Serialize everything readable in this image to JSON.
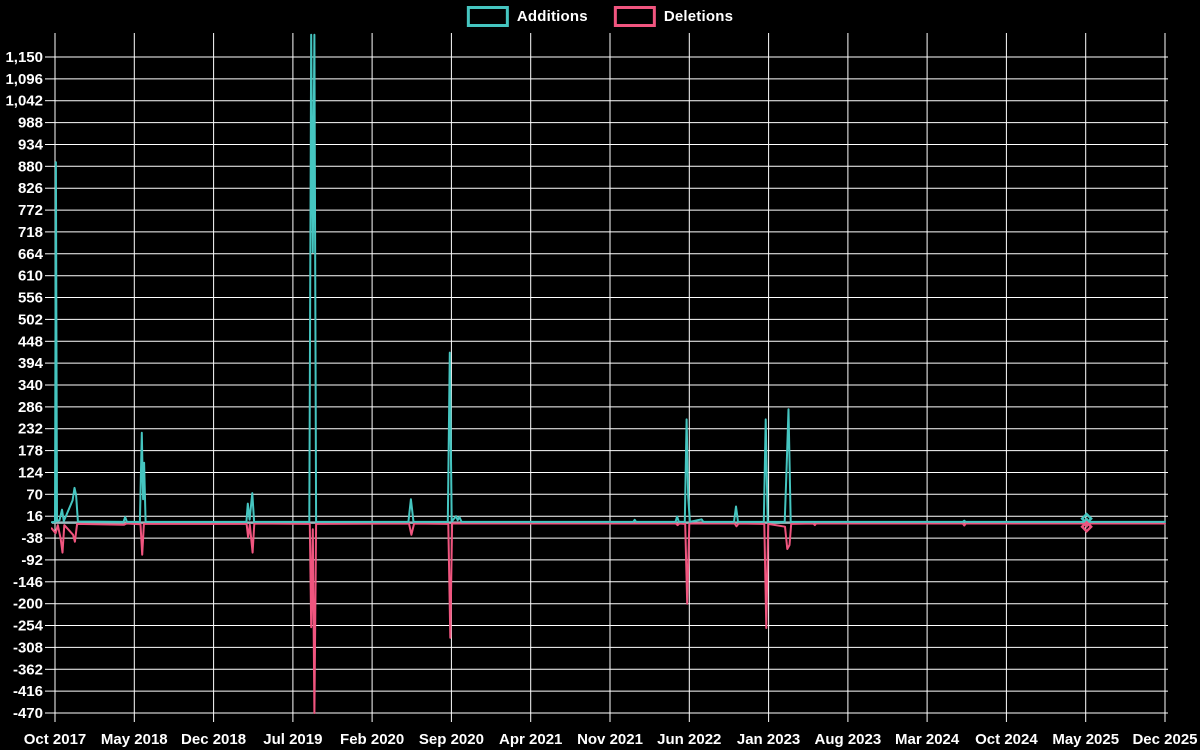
{
  "legend": {
    "items": [
      {
        "label": "Additions",
        "color": "#45c5c0"
      },
      {
        "label": "Deletions",
        "color": "#f0557f"
      }
    ]
  },
  "chart_data": {
    "type": "line",
    "title": "",
    "xlabel": "",
    "ylabel": "",
    "grid": true,
    "background": "#000000",
    "gridline_color": "#ffffff",
    "zero_line_color": "#9cb8bd",
    "legend_position": "top-center",
    "x_axis": {
      "tick_labels": [
        "Oct 2017",
        "May 2018",
        "Dec 2018",
        "Jul 2019",
        "Feb 2020",
        "Sep 2020",
        "Apr 2021",
        "Nov 2021",
        "Jun 2022",
        "Jan 2023",
        "Aug 2023",
        "Mar 2024",
        "Oct 2024",
        "May 2025",
        "Dec 2025"
      ],
      "tick_interval_months": 7,
      "months_span": 98
    },
    "y_axis": {
      "tick_labels": [
        "1,150",
        "1,096",
        "1,042",
        "988",
        "934",
        "880",
        "826",
        "772",
        "718",
        "664",
        "610",
        "556",
        "502",
        "448",
        "394",
        "340",
        "286",
        "232",
        "178",
        "124",
        "70",
        "16",
        "-38",
        "-92",
        "-146",
        "-200",
        "-254",
        "-308",
        "-362",
        "-416",
        "-470"
      ],
      "tick_max": 1150,
      "tick_step": -54,
      "axis_top_value": 1209,
      "axis_bottom_value": -494
    },
    "series": [
      {
        "name": "Additions",
        "color": "#45c5c0",
        "points": [
          [
            -0.3,
            1
          ],
          [
            0.0,
            2
          ],
          [
            0.08,
            890
          ],
          [
            0.18,
            4
          ],
          [
            0.4,
            6
          ],
          [
            0.62,
            32
          ],
          [
            0.78,
            4
          ],
          [
            1.55,
            55
          ],
          [
            1.72,
            86
          ],
          [
            1.86,
            68
          ],
          [
            2.02,
            3
          ],
          [
            6.05,
            2
          ],
          [
            6.2,
            14
          ],
          [
            6.35,
            2
          ],
          [
            7.5,
            2
          ],
          [
            7.66,
            222
          ],
          [
            7.78,
            58
          ],
          [
            7.87,
            148
          ],
          [
            8.0,
            2
          ],
          [
            16.9,
            2
          ],
          [
            17.02,
            47
          ],
          [
            17.18,
            7
          ],
          [
            17.42,
            73
          ],
          [
            17.58,
            2
          ],
          [
            22.45,
            2
          ],
          [
            22.62,
            1205
          ],
          [
            22.76,
            668
          ],
          [
            22.9,
            1205
          ],
          [
            23.05,
            2
          ],
          [
            31.2,
            2
          ],
          [
            31.42,
            58
          ],
          [
            31.65,
            2
          ],
          [
            34.68,
            2
          ],
          [
            34.86,
            420
          ],
          [
            35.02,
            3
          ],
          [
            35.4,
            16
          ],
          [
            35.55,
            6
          ],
          [
            35.7,
            14
          ],
          [
            35.9,
            2
          ],
          [
            51.05,
            2
          ],
          [
            51.18,
            7
          ],
          [
            51.3,
            2
          ],
          [
            54.78,
            2
          ],
          [
            54.92,
            15
          ],
          [
            55.08,
            2
          ],
          [
            55.6,
            2
          ],
          [
            55.76,
            255
          ],
          [
            55.9,
            64
          ],
          [
            56.05,
            2
          ],
          [
            57.1,
            8
          ],
          [
            57.25,
            2
          ],
          [
            59.95,
            2
          ],
          [
            60.12,
            40
          ],
          [
            60.3,
            2
          ],
          [
            62.58,
            2
          ],
          [
            62.75,
            255
          ],
          [
            62.92,
            2
          ],
          [
            64.42,
            2
          ],
          [
            64.58,
            128
          ],
          [
            64.76,
            280
          ],
          [
            64.95,
            2
          ],
          [
            80.15,
            2
          ],
          [
            80.28,
            5
          ],
          [
            80.4,
            2
          ],
          [
            90.9,
            2
          ],
          [
            91.08,
            10
          ],
          [
            91.25,
            2
          ],
          [
            98,
            2
          ]
        ]
      },
      {
        "name": "Deletions",
        "color": "#f0557f",
        "points": [
          [
            -0.3,
            -14
          ],
          [
            0.05,
            -26
          ],
          [
            0.25,
            -6
          ],
          [
            0.5,
            -40
          ],
          [
            0.66,
            -74
          ],
          [
            0.82,
            -6
          ],
          [
            1.6,
            -30
          ],
          [
            1.76,
            -47
          ],
          [
            1.95,
            -3
          ],
          [
            6.1,
            -5
          ],
          [
            6.3,
            -2
          ],
          [
            7.55,
            -4
          ],
          [
            7.7,
            -79
          ],
          [
            7.85,
            -3
          ],
          [
            16.92,
            -3
          ],
          [
            17.05,
            -36
          ],
          [
            17.2,
            -5
          ],
          [
            17.45,
            -74
          ],
          [
            17.6,
            -2
          ],
          [
            22.5,
            -3
          ],
          [
            22.62,
            -258
          ],
          [
            22.76,
            -16
          ],
          [
            22.9,
            -470
          ],
          [
            23.05,
            -3
          ],
          [
            31.25,
            -2
          ],
          [
            31.47,
            -30
          ],
          [
            31.7,
            -2
          ],
          [
            34.72,
            -3
          ],
          [
            34.9,
            -284
          ],
          [
            35.06,
            -2
          ],
          [
            54.82,
            -2
          ],
          [
            54.97,
            -6
          ],
          [
            55.12,
            -2
          ],
          [
            55.64,
            -3
          ],
          [
            55.82,
            -200
          ],
          [
            56.0,
            -2
          ],
          [
            60.0,
            -2
          ],
          [
            60.17,
            -9
          ],
          [
            60.35,
            -2
          ],
          [
            62.62,
            -3
          ],
          [
            62.8,
            -260
          ],
          [
            62.97,
            -3
          ],
          [
            64.45,
            -10
          ],
          [
            64.65,
            -65
          ],
          [
            64.85,
            -55
          ],
          [
            65.0,
            -3
          ],
          [
            66.95,
            -2
          ],
          [
            67.08,
            -6
          ],
          [
            67.2,
            -2
          ],
          [
            80.15,
            -2
          ],
          [
            80.28,
            -7
          ],
          [
            80.4,
            -2
          ],
          [
            90.9,
            -2
          ],
          [
            91.08,
            -10
          ],
          [
            91.25,
            -2
          ],
          [
            98,
            -2
          ]
        ]
      }
    ],
    "markers": [
      {
        "series": "Additions",
        "x_months": 91.08,
        "value": 10,
        "shape": "diamond",
        "color": "#45c5c0"
      },
      {
        "series": "Deletions",
        "x_months": 91.08,
        "value": -10,
        "shape": "diamond",
        "color": "#f0557f"
      }
    ]
  }
}
